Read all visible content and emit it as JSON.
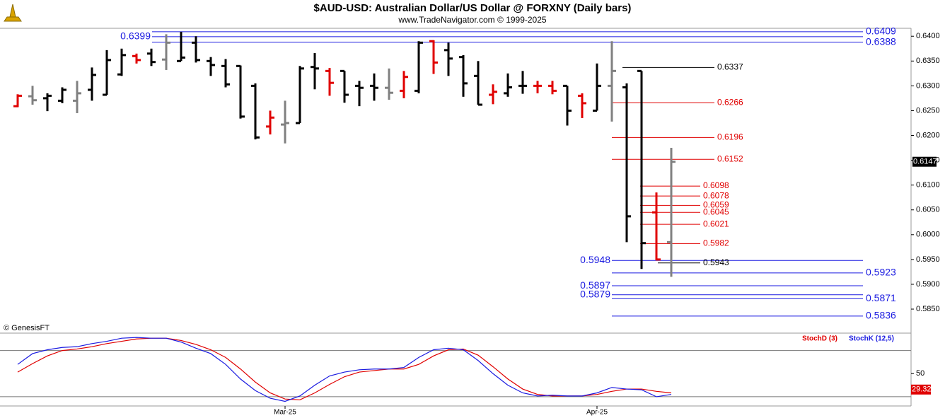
{
  "title": "$AUD-USD:  Australian Dollar/US Dollar @ FORXNY  (Daily bars)",
  "subtitle": "www.TradeNavigator.com © 1999-2025",
  "credit": "© GenesisFT",
  "chart_data": [
    {
      "type": "ohlc",
      "open": [
        0.6259,
        0.6279,
        0.6275,
        0.627,
        0.627,
        0.6292,
        0.6282,
        0.6323,
        0.636,
        0.6365,
        0.6353,
        0.635,
        0.6387,
        0.635,
        0.634,
        0.634,
        0.63,
        0.6218,
        0.6222,
        0.6225,
        0.6338,
        0.633,
        0.633,
        0.63,
        0.63,
        0.6296,
        0.629,
        0.629,
        0.639,
        0.6372,
        0.6358,
        0.632,
        0.6282,
        0.6285,
        0.63,
        0.63,
        0.63,
        0.63,
        0.628,
        0.625,
        0.63,
        0.6297,
        0.633,
        0.6045,
        0.5985
      ],
      "high": [
        0.6283,
        0.63,
        0.6285,
        0.6297,
        0.631,
        0.6337,
        0.6372,
        0.6375,
        0.6365,
        0.6375,
        0.6404,
        0.6409,
        0.64,
        0.6358,
        0.6354,
        0.6341,
        0.6305,
        0.625,
        0.627,
        0.634,
        0.6366,
        0.6336,
        0.633,
        0.631,
        0.6325,
        0.6335,
        0.633,
        0.639,
        0.6392,
        0.6387,
        0.6362,
        0.635,
        0.6303,
        0.6325,
        0.633,
        0.631,
        0.631,
        0.63,
        0.6285,
        0.6345,
        0.639,
        0.6305,
        0.633,
        0.6085,
        0.6175
      ],
      "low": [
        0.6257,
        0.6262,
        0.6249,
        0.6265,
        0.6245,
        0.627,
        0.6282,
        0.632,
        0.6345,
        0.634,
        0.6332,
        0.635,
        0.6347,
        0.632,
        0.6297,
        0.6234,
        0.6192,
        0.6202,
        0.6184,
        0.6225,
        0.6293,
        0.628,
        0.6266,
        0.6259,
        0.627,
        0.6272,
        0.6275,
        0.6285,
        0.6324,
        0.632,
        0.6278,
        0.6262,
        0.6263,
        0.6278,
        0.6284,
        0.6285,
        0.6283,
        0.622,
        0.6235,
        0.625,
        0.6228,
        0.5985,
        0.5931,
        0.5948,
        0.5915
      ],
      "close": [
        0.628,
        0.6271,
        0.628,
        0.6292,
        0.6285,
        0.6322,
        0.6352,
        0.6362,
        0.6352,
        0.6348,
        0.6387,
        0.6357,
        0.6352,
        0.6342,
        0.6303,
        0.6238,
        0.6196,
        0.6236,
        0.6225,
        0.6335,
        0.6335,
        0.6306,
        0.6282,
        0.6296,
        0.6296,
        0.6286,
        0.6318,
        0.6387,
        0.6347,
        0.6355,
        0.6305,
        0.6262,
        0.6288,
        0.6297,
        0.63,
        0.63,
        0.629,
        0.625,
        0.6265,
        0.63,
        0.633,
        0.6037,
        0.5983,
        0.595,
        0.6147
      ],
      "bar_colors": [
        "#e00000",
        "#808080",
        "#000000",
        "#000000",
        "#808080",
        "#000000",
        "#000000",
        "#000000",
        "#e00000",
        "#000000",
        "#808080",
        "#000000",
        "#000000",
        "#000000",
        "#000000",
        "#000000",
        "#000000",
        "#e00000",
        "#808080",
        "#000000",
        "#000000",
        "#e00000",
        "#000000",
        "#000000",
        "#000000",
        "#808080",
        "#e00000",
        "#000000",
        "#e00000",
        "#000000",
        "#000000",
        "#000000",
        "#e00000",
        "#000000",
        "#000000",
        "#e00000",
        "#e00000",
        "#000000",
        "#e00000",
        "#000000",
        "#808080",
        "#000000",
        "#000000",
        "#e00000",
        "#808080"
      ],
      "ylim": [
        0.5803,
        0.6416
      ],
      "yticks": [
        {
          "value": 0.585,
          "label": "0.5850"
        },
        {
          "value": 0.59,
          "label": "0.5900"
        },
        {
          "value": 0.595,
          "label": "0.5950"
        },
        {
          "value": 0.6,
          "label": "0.6000"
        },
        {
          "value": 0.605,
          "label": "0.6050"
        },
        {
          "value": 0.61,
          "label": "0.6100"
        },
        {
          "value": 0.615,
          "label": "0.6150"
        },
        {
          "value": 0.62,
          "label": "0.6200"
        },
        {
          "value": 0.625,
          "label": "0.6250"
        },
        {
          "value": 0.63,
          "label": "0.6300"
        },
        {
          "value": 0.635,
          "label": "0.6350"
        },
        {
          "value": 0.64,
          "label": "0.6400"
        }
      ],
      "last_price": 0.6147,
      "levels": [
        {
          "value": 0.6409,
          "color": "#1a1ae0"
        },
        {
          "value": 0.6399,
          "color": "#1a1ae0"
        },
        {
          "value": 0.6388,
          "color": "#1a1ae0"
        },
        {
          "value": 0.6337,
          "color": "#000000"
        },
        {
          "value": 0.6266,
          "color": "#e00000"
        },
        {
          "value": 0.6196,
          "color": "#e00000"
        },
        {
          "value": 0.6152,
          "color": "#e00000"
        },
        {
          "value": 0.6098,
          "color": "#e00000"
        },
        {
          "value": 0.6078,
          "color": "#e00000"
        },
        {
          "value": 0.6059,
          "color": "#e00000"
        },
        {
          "value": 0.6045,
          "color": "#e00000"
        },
        {
          "value": 0.6021,
          "color": "#e00000"
        },
        {
          "value": 0.5982,
          "color": "#e00000"
        },
        {
          "value": 0.5948,
          "color": "#1a1ae0"
        },
        {
          "value": 0.5943,
          "color": "#000000"
        },
        {
          "value": 0.5923,
          "color": "#1a1ae0"
        },
        {
          "value": 0.5897,
          "color": "#1a1ae0"
        },
        {
          "value": 0.5879,
          "color": "#1a1ae0"
        },
        {
          "value": 0.5871,
          "color": "#1a1ae0"
        },
        {
          "value": 0.5836,
          "color": "#1a1ae0"
        }
      ]
    },
    {
      "type": "line",
      "categories": [
        null,
        null,
        null,
        null,
        null,
        null,
        null,
        null,
        null,
        null,
        null,
        null,
        null,
        null,
        null,
        null,
        null,
        null,
        "Mar-25",
        null,
        null,
        null,
        null,
        null,
        null,
        null,
        null,
        null,
        null,
        null,
        null,
        null,
        null,
        null,
        null,
        null,
        null,
        null,
        null,
        "Apr-25",
        null,
        null,
        null,
        null,
        null
      ],
      "series": [
        {
          "name": "StochD (3)",
          "color": "#e00000",
          "values": [
            52,
            63,
            73,
            80,
            82,
            85,
            89,
            92,
            95,
            96,
            96,
            93,
            88,
            81,
            71,
            56,
            39,
            25,
            17,
            16,
            25,
            36,
            46,
            52,
            54,
            56,
            56,
            62,
            73,
            81,
            82,
            74,
            59,
            43,
            30,
            23,
            21,
            21,
            21,
            23,
            27,
            30,
            30,
            27,
            25
          ]
        },
        {
          "name": "StochK (12,5)",
          "color": "#1a1ae0",
          "values": [
            62,
            76,
            81,
            84,
            85,
            89,
            92,
            96,
            97,
            96,
            96,
            91,
            83,
            76,
            62,
            43,
            28,
            18,
            14,
            21,
            35,
            47,
            52,
            55,
            56,
            56,
            58,
            71,
            81,
            83,
            81,
            67,
            50,
            35,
            25,
            21,
            22,
            21,
            21,
            25,
            32,
            30,
            29,
            20,
            23
          ]
        }
      ],
      "ylim": [
        8,
        98
      ],
      "yticks": [
        50
      ],
      "hlines": [
        20,
        80
      ],
      "last_value": 29.32
    }
  ]
}
